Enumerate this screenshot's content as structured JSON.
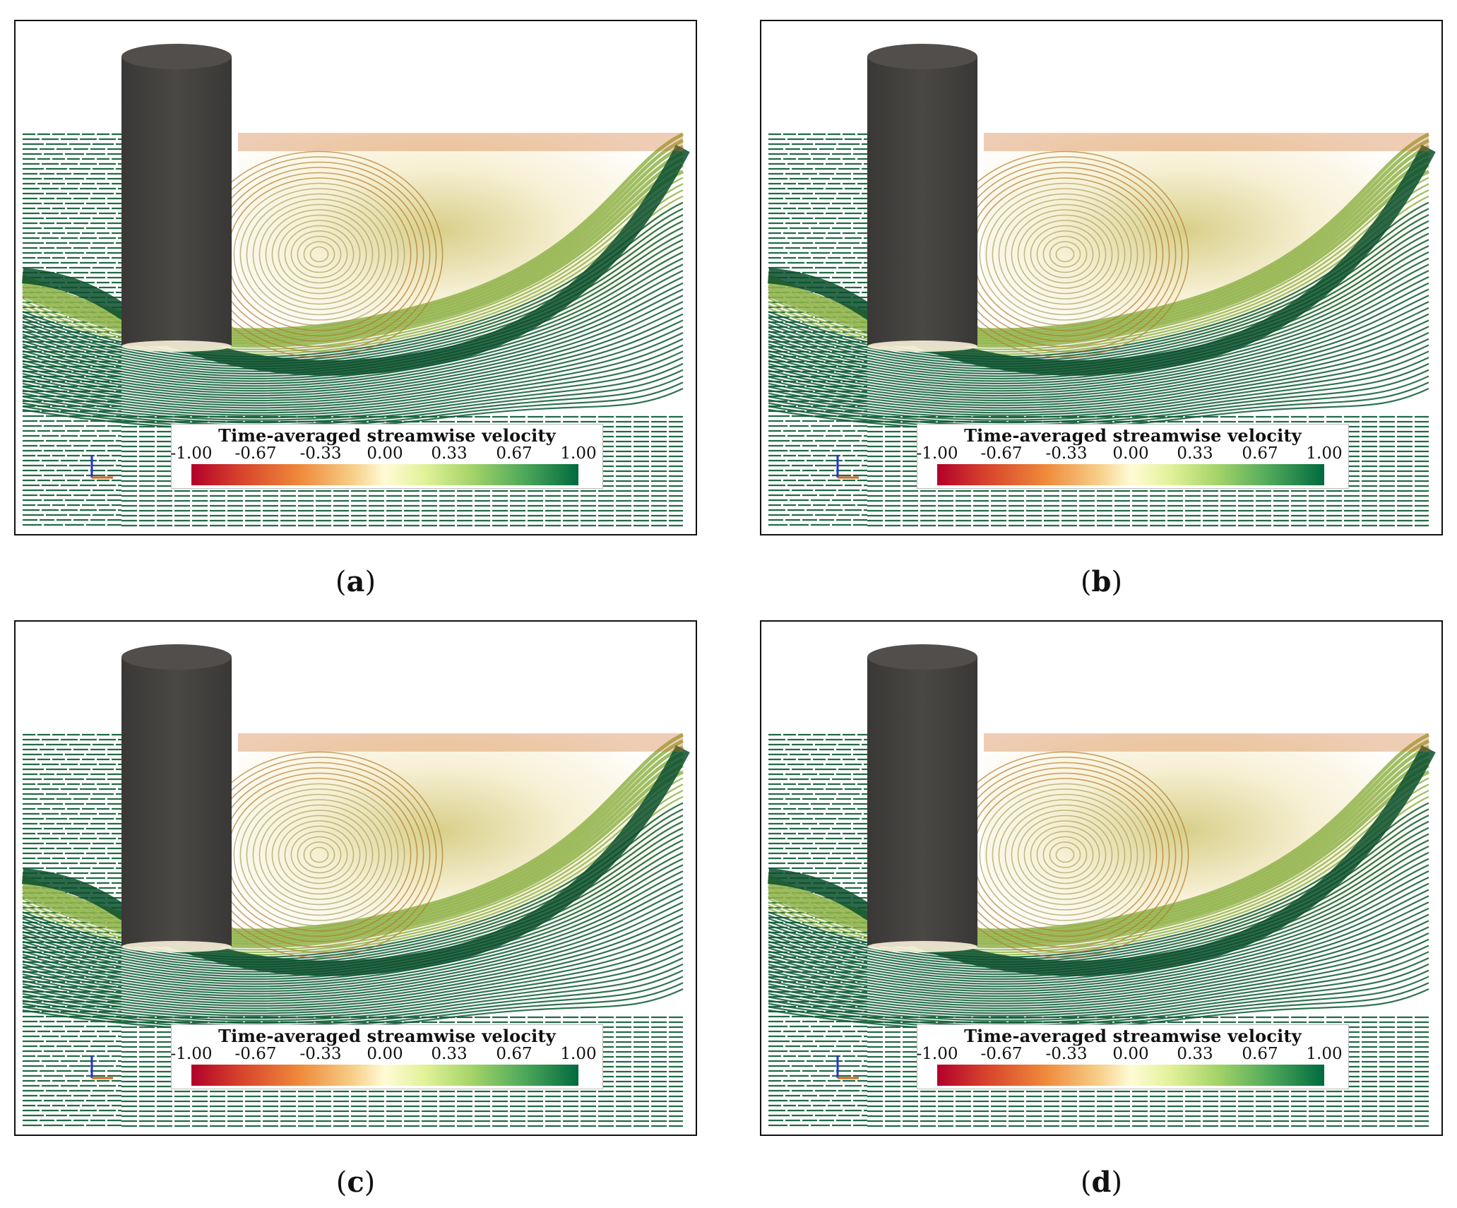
{
  "figure": {
    "panels": [
      {
        "id": "a",
        "caption": "a",
        "legend": {
          "title": "Time-averaged streamwise velocity",
          "ticks": [
            "-1.00",
            "-0.67",
            "-0.33",
            "0.00",
            "0.33",
            "0.67",
            "1.00"
          ]
        }
      },
      {
        "id": "b",
        "caption": "b",
        "legend": {
          "title": "Time-averaged streamwise velocity",
          "ticks": [
            "-1.00",
            "-0.67",
            "-0.33",
            "0.00",
            "0.33",
            "0.67",
            "1.00"
          ]
        }
      },
      {
        "id": "c",
        "caption": "c",
        "legend": {
          "title": "Time-averaged streamwise velocity",
          "ticks": [
            "-1.00",
            "-0.67",
            "-0.33",
            "0.00",
            "0.33",
            "0.67",
            "1.00"
          ]
        }
      },
      {
        "id": "d",
        "caption": "d",
        "legend": {
          "title": "Time-averaged streamwise velocity",
          "ticks": [
            "-1.00",
            "-0.67",
            "-0.33",
            "0.00",
            "0.33",
            "0.67",
            "1.00"
          ]
        }
      }
    ],
    "colors": {
      "cylinder": "#4a4845",
      "fast_flow": "#0b5a33",
      "slow_flow": "#c8a050",
      "reverse_flow": "#d0702a"
    },
    "colormap": [
      "#b2002a",
      "#ef8a3a",
      "#fffbd6",
      "#a7d56a",
      "#006a3e"
    ]
  }
}
